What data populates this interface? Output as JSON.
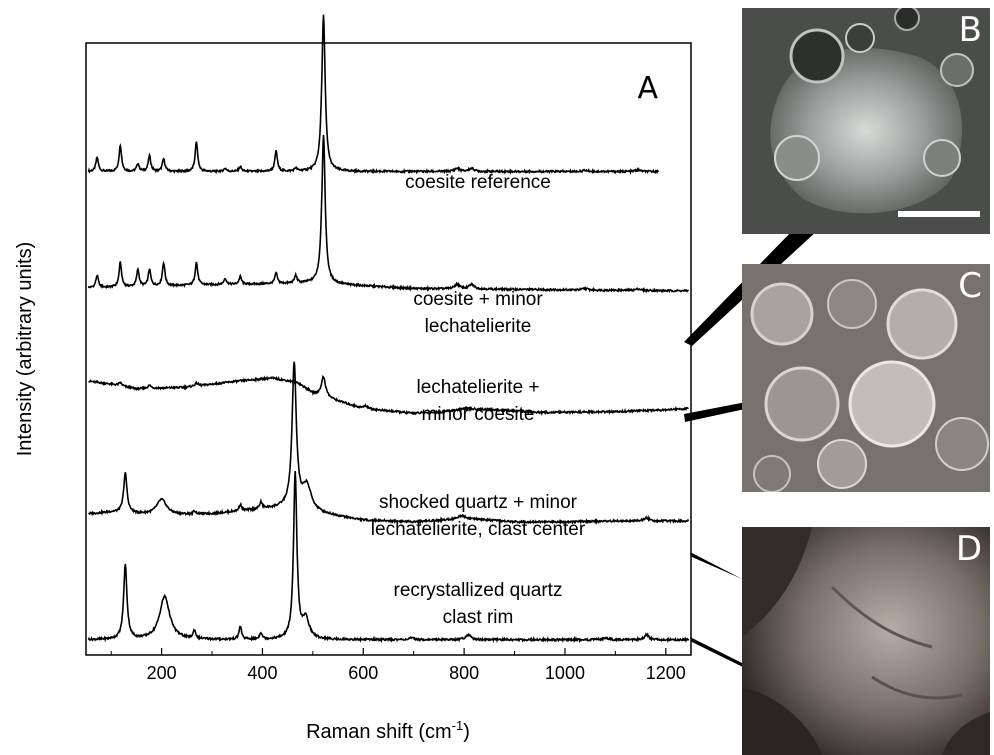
{
  "figure": {
    "panels": [
      "A",
      "B",
      "C",
      "D"
    ]
  },
  "chart_data": {
    "type": "line",
    "title": "",
    "xlabel": "Raman shift (cm",
    "xlabel_sup": "-1",
    "xlabel_end": ")",
    "ylabel": "Intensity (arbitrary units)",
    "xlim": [
      50,
      1250
    ],
    "xticks": [
      200,
      400,
      600,
      800,
      1000,
      1200
    ],
    "ylim": [
      0,
      1
    ],
    "grid": false,
    "legend": "none",
    "series": [
      {
        "name": "coesite reference",
        "label_lines": [
          "coesite reference"
        ],
        "baseline": 0.79,
        "scale": 0.255,
        "x_range": [
          55,
          1185
        ],
        "background": [
          [
            55,
            0
          ],
          [
            1185,
            0
          ]
        ],
        "peaks": [
          {
            "x": 72,
            "h": 0.09,
            "w": 3
          },
          {
            "x": 118,
            "h": 0.17,
            "w": 3
          },
          {
            "x": 153,
            "h": 0.05,
            "w": 3
          },
          {
            "x": 176,
            "h": 0.1,
            "w": 3
          },
          {
            "x": 204,
            "h": 0.08,
            "w": 3
          },
          {
            "x": 269,
            "h": 0.19,
            "w": 3
          },
          {
            "x": 326,
            "h": 0.02,
            "w": 3
          },
          {
            "x": 356,
            "h": 0.03,
            "w": 3
          },
          {
            "x": 427,
            "h": 0.13,
            "w": 3
          },
          {
            "x": 466,
            "h": 0.02,
            "w": 3
          },
          {
            "x": 521,
            "h": 1.0,
            "w": 4
          },
          {
            "x": 786,
            "h": 0.02,
            "w": 6
          },
          {
            "x": 815,
            "h": 0.02,
            "w": 6
          },
          {
            "x": 1040,
            "h": 0.008,
            "w": 6
          },
          {
            "x": 1145,
            "h": 0.01,
            "w": 6
          }
        ]
      },
      {
        "name": "coesite + minor lechatelierite",
        "label_lines": [
          "coesite + minor",
          "lechatelierite"
        ],
        "baseline": 0.595,
        "scale": 0.25,
        "x_range": [
          55,
          1245
        ],
        "background": [
          [
            55,
            0.02
          ],
          [
            300,
            0.04
          ],
          [
            500,
            0.05
          ],
          [
            700,
            0.015
          ],
          [
            1245,
            0.0
          ]
        ],
        "peaks": [
          {
            "x": 72,
            "h": 0.08,
            "w": 3
          },
          {
            "x": 118,
            "h": 0.16,
            "w": 3
          },
          {
            "x": 153,
            "h": 0.11,
            "w": 3
          },
          {
            "x": 176,
            "h": 0.11,
            "w": 3
          },
          {
            "x": 204,
            "h": 0.15,
            "w": 3
          },
          {
            "x": 269,
            "h": 0.15,
            "w": 3
          },
          {
            "x": 326,
            "h": 0.04,
            "w": 3
          },
          {
            "x": 356,
            "h": 0.05,
            "w": 3
          },
          {
            "x": 427,
            "h": 0.07,
            "w": 3
          },
          {
            "x": 466,
            "h": 0.05,
            "w": 3
          },
          {
            "x": 521,
            "h": 0.97,
            "w": 4
          },
          {
            "x": 786,
            "h": 0.03,
            "w": 6
          },
          {
            "x": 815,
            "h": 0.03,
            "w": 6
          },
          {
            "x": 1040,
            "h": 0.01,
            "w": 6
          },
          {
            "x": 1145,
            "h": 0.01,
            "w": 6
          }
        ]
      },
      {
        "name": "lechatelierite + minor coesite",
        "label_lines": [
          "lechatelierite +",
          "minor coesite"
        ],
        "baseline": 0.395,
        "scale": 0.25,
        "x_range": [
          55,
          1245
        ],
        "background": [
          [
            55,
            0.21
          ],
          [
            100,
            0.19
          ],
          [
            150,
            0.16
          ],
          [
            250,
            0.17
          ],
          [
            350,
            0.21
          ],
          [
            420,
            0.23
          ],
          [
            470,
            0.2
          ],
          [
            500,
            0.13
          ],
          [
            530,
            0.1
          ],
          [
            600,
            0.03
          ],
          [
            700,
            0.0
          ],
          [
            760,
            0.01
          ],
          [
            800,
            0.03
          ],
          [
            850,
            0.025
          ],
          [
            950,
            0.005
          ],
          [
            1100,
            0.01
          ],
          [
            1245,
            0.03
          ]
        ],
        "peaks": [
          {
            "x": 118,
            "h": 0.02,
            "w": 4
          },
          {
            "x": 176,
            "h": 0.02,
            "w": 4
          },
          {
            "x": 269,
            "h": 0.02,
            "w": 4
          },
          {
            "x": 521,
            "h": 0.13,
            "w": 5
          },
          {
            "x": 605,
            "h": 0.02,
            "w": 6
          }
        ]
      },
      {
        "name": "shocked quartz + minor lechatelierite, clast center",
        "label_lines": [
          "shocked quartz + minor",
          "lechatelierite, clast center"
        ],
        "baseline": 0.215,
        "scale": 0.26,
        "x_range": [
          55,
          1245
        ],
        "background": [
          [
            55,
            0.06
          ],
          [
            100,
            0.07
          ],
          [
            200,
            0.05
          ],
          [
            300,
            0.06
          ],
          [
            400,
            0.09
          ],
          [
            460,
            0.1
          ],
          [
            520,
            0.06
          ],
          [
            600,
            0.02
          ],
          [
            700,
            0.01
          ],
          [
            800,
            0.03
          ],
          [
            900,
            0.01
          ],
          [
            1000,
            0.01
          ],
          [
            1100,
            0.015
          ],
          [
            1245,
            0.015
          ]
        ],
        "peaks": [
          {
            "x": 128,
            "h": 0.25,
            "w": 4
          },
          {
            "x": 200,
            "h": 0.1,
            "w": 12
          },
          {
            "x": 265,
            "h": 0.02,
            "w": 3
          },
          {
            "x": 356,
            "h": 0.04,
            "w": 3
          },
          {
            "x": 397,
            "h": 0.04,
            "w": 3
          },
          {
            "x": 463,
            "h": 0.9,
            "w": 5
          },
          {
            "x": 488,
            "h": 0.15,
            "w": 10
          },
          {
            "x": 795,
            "h": 0.02,
            "w": 8
          },
          {
            "x": 1162,
            "h": 0.02,
            "w": 6
          }
        ]
      },
      {
        "name": "recrystallized quartz clast rim",
        "label_lines": [
          "recrystallized quartz",
          "clast rim"
        ],
        "baseline": 0.025,
        "scale": 0.27,
        "x_range": [
          55,
          1245
        ],
        "background": [
          [
            55,
            0
          ],
          [
            1245,
            0
          ]
        ],
        "peaks": [
          {
            "x": 128,
            "h": 0.45,
            "w": 4
          },
          {
            "x": 206,
            "h": 0.26,
            "w": 12
          },
          {
            "x": 265,
            "h": 0.05,
            "w": 3
          },
          {
            "x": 356,
            "h": 0.08,
            "w": 3
          },
          {
            "x": 397,
            "h": 0.04,
            "w": 3
          },
          {
            "x": 465,
            "h": 1.0,
            "w": 4
          },
          {
            "x": 486,
            "h": 0.12,
            "w": 8
          },
          {
            "x": 696,
            "h": 0.01,
            "w": 5
          },
          {
            "x": 808,
            "h": 0.03,
            "w": 6
          },
          {
            "x": 1082,
            "h": 0.01,
            "w": 6
          },
          {
            "x": 1162,
            "h": 0.03,
            "w": 5
          }
        ]
      }
    ]
  }
}
